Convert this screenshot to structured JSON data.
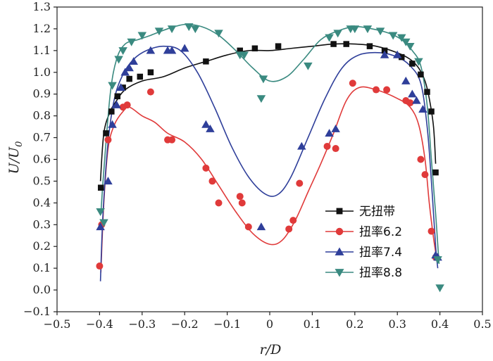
{
  "chart_data": {
    "type": "scatter",
    "title": "",
    "xlabel": "r/D",
    "ylabel_main": "U/U",
    "ylabel_subscript": "0",
    "xlim": [
      -0.5,
      0.5
    ],
    "ylim": [
      -0.1,
      1.3
    ],
    "xticks": [
      -0.5,
      -0.4,
      -0.3,
      -0.2,
      -0.1,
      0.0,
      0.1,
      0.2,
      0.3,
      0.4,
      0.5
    ],
    "yticks": [
      -0.1,
      0.0,
      0.1,
      0.2,
      0.3,
      0.4,
      0.5,
      0.6,
      0.7,
      0.8,
      0.9,
      1.0,
      1.1,
      1.2,
      1.3
    ],
    "xtick_labels": [
      "−0.5",
      "−0.4",
      "−0.3",
      "−0.2",
      "−0.1",
      "0",
      "0.1",
      "0.2",
      "0.3",
      "0.4",
      "0.5"
    ],
    "ytick_labels": [
      "−0.1",
      "0.0",
      "0.1",
      "0.2",
      "0.3",
      "0.4",
      "0.5",
      "0.6",
      "0.7",
      "0.8",
      "0.9",
      "1.0",
      "1.1",
      "1.2",
      "1.3"
    ],
    "legend_position": "bottom-right",
    "series": [
      {
        "name": "无扭带",
        "marker": "square",
        "color": "#111111",
        "points": [
          [
            -0.397,
            0.47
          ],
          [
            -0.385,
            0.72
          ],
          [
            -0.372,
            0.82
          ],
          [
            -0.358,
            0.89
          ],
          [
            -0.345,
            0.93
          ],
          [
            -0.33,
            0.97
          ],
          [
            -0.305,
            0.98
          ],
          [
            -0.28,
            1.0
          ],
          [
            -0.15,
            1.05
          ],
          [
            -0.07,
            1.1
          ],
          [
            -0.035,
            1.11
          ],
          [
            0.02,
            1.12
          ],
          [
            0.15,
            1.13
          ],
          [
            0.18,
            1.13
          ],
          [
            0.235,
            1.12
          ],
          [
            0.27,
            1.1
          ],
          [
            0.31,
            1.07
          ],
          [
            0.335,
            1.04
          ],
          [
            0.355,
            0.99
          ],
          [
            0.37,
            0.91
          ],
          [
            0.38,
            0.82
          ],
          [
            0.39,
            0.54
          ]
        ],
        "curve": [
          [
            -0.398,
            0.5
          ],
          [
            -0.39,
            0.72
          ],
          [
            -0.375,
            0.82
          ],
          [
            -0.36,
            0.87
          ],
          [
            -0.34,
            0.92
          ],
          [
            -0.3,
            0.96
          ],
          [
            -0.25,
            0.98
          ],
          [
            -0.2,
            1.02
          ],
          [
            -0.15,
            1.05
          ],
          [
            -0.1,
            1.08
          ],
          [
            -0.05,
            1.1
          ],
          [
            0.0,
            1.1
          ],
          [
            0.05,
            1.11
          ],
          [
            0.1,
            1.12
          ],
          [
            0.15,
            1.13
          ],
          [
            0.2,
            1.13
          ],
          [
            0.25,
            1.12
          ],
          [
            0.3,
            1.09
          ],
          [
            0.33,
            1.06
          ],
          [
            0.35,
            1.02
          ],
          [
            0.365,
            0.96
          ],
          [
            0.375,
            0.88
          ],
          [
            0.385,
            0.75
          ],
          [
            0.39,
            0.58
          ]
        ]
      },
      {
        "name": "扭率6.2",
        "marker": "circle",
        "color": "#e03a3a",
        "points": [
          [
            -0.4,
            0.11
          ],
          [
            -0.395,
            0.3
          ],
          [
            -0.38,
            0.69
          ],
          [
            -0.345,
            0.84
          ],
          [
            -0.335,
            0.85
          ],
          [
            -0.28,
            0.91
          ],
          [
            -0.24,
            0.69
          ],
          [
            -0.23,
            0.69
          ],
          [
            -0.15,
            0.56
          ],
          [
            -0.135,
            0.5
          ],
          [
            -0.12,
            0.4
          ],
          [
            -0.07,
            0.43
          ],
          [
            -0.065,
            0.4
          ],
          [
            -0.05,
            0.29
          ],
          [
            0.045,
            0.28
          ],
          [
            0.055,
            0.32
          ],
          [
            0.07,
            0.49
          ],
          [
            0.135,
            0.66
          ],
          [
            0.155,
            0.65
          ],
          [
            0.195,
            0.95
          ],
          [
            0.25,
            0.92
          ],
          [
            0.275,
            0.92
          ],
          [
            0.32,
            0.87
          ],
          [
            0.33,
            0.86
          ],
          [
            0.355,
            0.6
          ],
          [
            0.365,
            0.53
          ],
          [
            0.38,
            0.27
          ],
          [
            0.39,
            0.15
          ]
        ],
        "curve": [
          [
            -0.397,
            0.08
          ],
          [
            -0.39,
            0.4
          ],
          [
            -0.38,
            0.65
          ],
          [
            -0.365,
            0.76
          ],
          [
            -0.345,
            0.82
          ],
          [
            -0.33,
            0.84
          ],
          [
            -0.3,
            0.8
          ],
          [
            -0.27,
            0.77
          ],
          [
            -0.24,
            0.72
          ],
          [
            -0.2,
            0.68
          ],
          [
            -0.16,
            0.6
          ],
          [
            -0.12,
            0.48
          ],
          [
            -0.08,
            0.36
          ],
          [
            -0.04,
            0.26
          ],
          [
            0.0,
            0.21
          ],
          [
            0.03,
            0.23
          ],
          [
            0.06,
            0.32
          ],
          [
            0.09,
            0.45
          ],
          [
            0.12,
            0.58
          ],
          [
            0.15,
            0.72
          ],
          [
            0.18,
            0.87
          ],
          [
            0.21,
            0.93
          ],
          [
            0.25,
            0.92
          ],
          [
            0.3,
            0.88
          ],
          [
            0.33,
            0.84
          ],
          [
            0.35,
            0.76
          ],
          [
            0.365,
            0.6
          ],
          [
            0.375,
            0.4
          ],
          [
            0.385,
            0.24
          ],
          [
            0.392,
            0.15
          ]
        ]
      },
      {
        "name": "扭率7.4",
        "marker": "triangle-up",
        "color": "#2f3f9a",
        "points": [
          [
            -0.398,
            0.29
          ],
          [
            -0.38,
            0.5
          ],
          [
            -0.37,
            0.76
          ],
          [
            -0.36,
            0.85
          ],
          [
            -0.35,
            0.93
          ],
          [
            -0.34,
            1.0
          ],
          [
            -0.33,
            1.02
          ],
          [
            -0.32,
            1.05
          ],
          [
            -0.28,
            1.1
          ],
          [
            -0.24,
            1.1
          ],
          [
            -0.23,
            1.1
          ],
          [
            -0.2,
            1.11
          ],
          [
            -0.15,
            0.76
          ],
          [
            -0.14,
            0.74
          ],
          [
            -0.02,
            0.29
          ],
          [
            0.075,
            0.66
          ],
          [
            0.14,
            0.72
          ],
          [
            0.155,
            0.74
          ],
          [
            0.27,
            1.08
          ],
          [
            0.3,
            1.08
          ],
          [
            0.32,
            0.96
          ],
          [
            0.335,
            0.9
          ],
          [
            0.345,
            0.87
          ],
          [
            0.36,
            0.83
          ],
          [
            0.39,
            0.16
          ],
          [
            0.395,
            0.15
          ]
        ],
        "curve": [
          [
            -0.398,
            0.04
          ],
          [
            -0.392,
            0.35
          ],
          [
            -0.38,
            0.68
          ],
          [
            -0.365,
            0.88
          ],
          [
            -0.345,
            0.99
          ],
          [
            -0.32,
            1.06
          ],
          [
            -0.29,
            1.1
          ],
          [
            -0.25,
            1.12
          ],
          [
            -0.21,
            1.1
          ],
          [
            -0.17,
            1.0
          ],
          [
            -0.13,
            0.84
          ],
          [
            -0.09,
            0.66
          ],
          [
            -0.05,
            0.52
          ],
          [
            -0.01,
            0.44
          ],
          [
            0.02,
            0.44
          ],
          [
            0.05,
            0.52
          ],
          [
            0.09,
            0.7
          ],
          [
            0.13,
            0.88
          ],
          [
            0.17,
            1.02
          ],
          [
            0.21,
            1.08
          ],
          [
            0.26,
            1.09
          ],
          [
            0.3,
            1.07
          ],
          [
            0.33,
            1.03
          ],
          [
            0.355,
            0.95
          ],
          [
            0.37,
            0.75
          ],
          [
            0.38,
            0.5
          ],
          [
            0.39,
            0.2
          ],
          [
            0.395,
            0.1
          ]
        ]
      },
      {
        "name": "扭率8.8",
        "marker": "triangle-down",
        "color": "#3a8a80",
        "points": [
          [
            -0.398,
            0.36
          ],
          [
            -0.39,
            0.31
          ],
          [
            -0.37,
            0.94
          ],
          [
            -0.355,
            1.06
          ],
          [
            -0.345,
            1.1
          ],
          [
            -0.325,
            1.14
          ],
          [
            -0.3,
            1.17
          ],
          [
            -0.26,
            1.19
          ],
          [
            -0.23,
            1.2
          ],
          [
            -0.19,
            1.21
          ],
          [
            -0.175,
            1.2
          ],
          [
            -0.12,
            1.18
          ],
          [
            -0.07,
            1.08
          ],
          [
            -0.06,
            1.08
          ],
          [
            -0.015,
            0.97
          ],
          [
            -0.02,
            0.88
          ],
          [
            0.09,
            1.03
          ],
          [
            0.14,
            1.16
          ],
          [
            0.16,
            1.18
          ],
          [
            0.19,
            1.2
          ],
          [
            0.2,
            1.2
          ],
          [
            0.23,
            1.2
          ],
          [
            0.26,
            1.19
          ],
          [
            0.29,
            1.17
          ],
          [
            0.31,
            1.16
          ],
          [
            0.32,
            1.14
          ],
          [
            0.33,
            1.12
          ],
          [
            0.35,
            1.05
          ],
          [
            0.395,
            0.14
          ],
          [
            0.4,
            0.01
          ]
        ],
        "curve": [
          [
            -0.397,
            0.35
          ],
          [
            -0.39,
            0.55
          ],
          [
            -0.375,
            0.9
          ],
          [
            -0.36,
            1.06
          ],
          [
            -0.34,
            1.13
          ],
          [
            -0.31,
            1.15
          ],
          [
            -0.28,
            1.17
          ],
          [
            -0.24,
            1.2
          ],
          [
            -0.2,
            1.22
          ],
          [
            -0.16,
            1.21
          ],
          [
            -0.12,
            1.17
          ],
          [
            -0.08,
            1.1
          ],
          [
            -0.04,
            1.02
          ],
          [
            0.0,
            0.96
          ],
          [
            0.04,
            0.98
          ],
          [
            0.08,
            1.06
          ],
          [
            0.12,
            1.15
          ],
          [
            0.16,
            1.19
          ],
          [
            0.2,
            1.21
          ],
          [
            0.24,
            1.2
          ],
          [
            0.28,
            1.18
          ],
          [
            0.31,
            1.15
          ],
          [
            0.335,
            1.1
          ],
          [
            0.355,
            1.03
          ],
          [
            0.37,
            0.85
          ],
          [
            0.38,
            0.6
          ],
          [
            0.39,
            0.35
          ],
          [
            0.398,
            0.12
          ]
        ]
      }
    ]
  }
}
